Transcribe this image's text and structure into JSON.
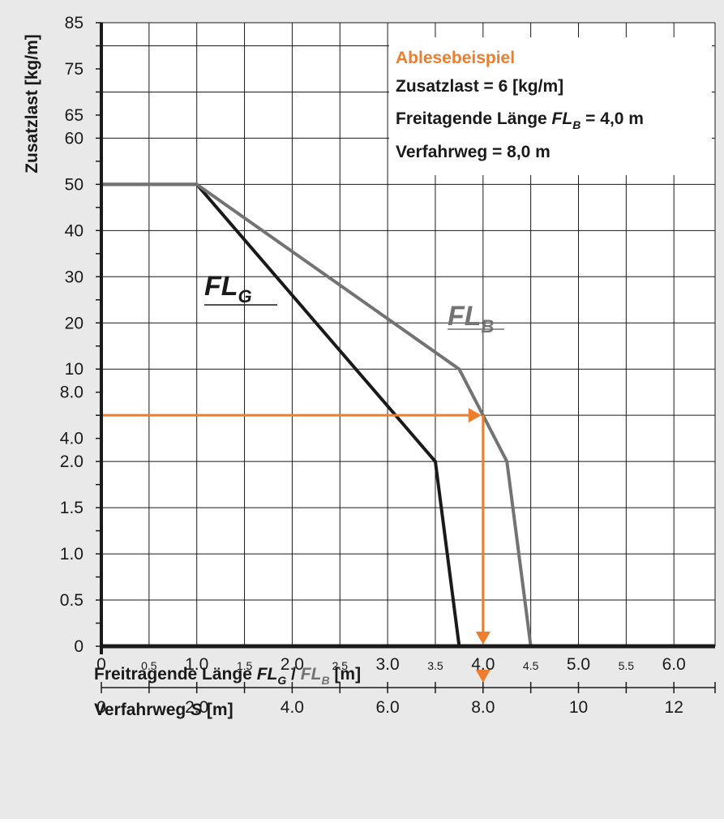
{
  "colors": {
    "background": "#e9e9ea",
    "plot_background": "#ffffff",
    "grid": "#1a1a1a",
    "fl_g": "#1a1a1a",
    "fl_b": "#737373",
    "example": "#ee7d2d"
  },
  "legend": {
    "title": "Ablesebeispiel",
    "line1": "Zusatzlast = 6 [kg/m]",
    "line2_prefix": "Freitagende Länge ",
    "line2_var": "FL",
    "line2_sub": "B",
    "line2_suffix": " = 4,0 m",
    "line3": "Verfahrweg = 8,0 m"
  },
  "chart_data": {
    "type": "line",
    "ylabel": "Zusatzlast [kg/m]",
    "xlabel": {
      "prefix": "Freitragende Länge ",
      "var1": "FL",
      "sub1": "G",
      "separator": " / ",
      "var2": "FL",
      "sub2": "B",
      "suffix": " [m]"
    },
    "y_ticks": [
      "0",
      "0.5",
      "1.0",
      "1.5",
      "2.0",
      "4.0",
      "8.0",
      "10",
      "20",
      "30",
      "40",
      "50",
      "60",
      "65",
      "75",
      "85"
    ],
    "x_ticks_major": [
      "0",
      "1.0",
      "2.0",
      "3.0",
      "4.0",
      "5.0",
      "6.0"
    ],
    "x_ticks_minor": [
      "0.5",
      "1.5",
      "2.5",
      "3.5",
      "4.5",
      "5.5"
    ],
    "xlim": [
      0,
      6.5
    ],
    "series": [
      {
        "name": "FL_G",
        "label_main": "FL",
        "label_sub": "G",
        "points": [
          [
            0,
            "50"
          ],
          [
            1.0,
            "50"
          ],
          [
            3.5,
            "2.0"
          ],
          [
            3.75,
            "0"
          ]
        ]
      },
      {
        "name": "FL_B",
        "label_main": "FL",
        "label_sub": "B",
        "points": [
          [
            0,
            "50"
          ],
          [
            1.0,
            "50"
          ],
          [
            3.75,
            "10"
          ],
          [
            4.25,
            "2.0"
          ],
          [
            4.5,
            "0"
          ]
        ]
      }
    ],
    "example": {
      "x": 4.0,
      "y": 6,
      "travel": 8.0
    },
    "secondary_axis": {
      "label_prefix": "Verfahrweg ",
      "label_var": "S",
      "label_suffix": " [m]",
      "ticks": [
        "0",
        "2.0",
        "4.0",
        "6.0",
        "8.0",
        "10",
        "12"
      ]
    }
  }
}
